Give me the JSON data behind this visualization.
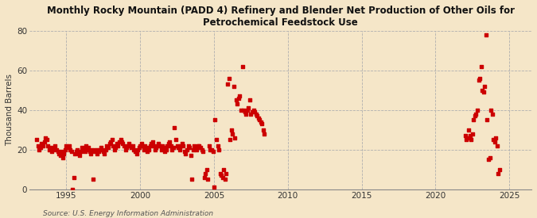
{
  "title": "Monthly Rocky Mountain (PADD 4) Refinery and Blender Net Production of Other Oils for\nPetrochemical Feedstock Use",
  "ylabel": "Thousand Barrels",
  "source": "Source: U.S. Energy Information Administration",
  "background_color": "#f5e6c8",
  "plot_bg_color": "#f5e6c8",
  "dot_color": "#cc0000",
  "xlim": [
    1992.5,
    2026.5
  ],
  "ylim": [
    0,
    80
  ],
  "yticks": [
    0,
    20,
    40,
    60,
    80
  ],
  "xticks": [
    1995,
    2000,
    2005,
    2010,
    2015,
    2020,
    2025
  ],
  "data": [
    [
      1993.0,
      25
    ],
    [
      1993.08,
      22
    ],
    [
      1993.17,
      20
    ],
    [
      1993.25,
      21
    ],
    [
      1993.33,
      23
    ],
    [
      1993.42,
      22
    ],
    [
      1993.5,
      24
    ],
    [
      1993.58,
      26
    ],
    [
      1993.67,
      25
    ],
    [
      1993.75,
      22
    ],
    [
      1993.83,
      20
    ],
    [
      1993.92,
      21
    ],
    [
      1994.0,
      19
    ],
    [
      1994.08,
      20
    ],
    [
      1994.17,
      21
    ],
    [
      1994.25,
      22
    ],
    [
      1994.33,
      20
    ],
    [
      1994.42,
      19
    ],
    [
      1994.5,
      18
    ],
    [
      1994.58,
      17
    ],
    [
      1994.67,
      19
    ],
    [
      1994.75,
      16
    ],
    [
      1994.83,
      18
    ],
    [
      1994.92,
      20
    ],
    [
      1995.0,
      22
    ],
    [
      1995.08,
      21
    ],
    [
      1995.17,
      22
    ],
    [
      1995.25,
      20
    ],
    [
      1995.33,
      19
    ],
    [
      1995.42,
      0
    ],
    [
      1995.5,
      6
    ],
    [
      1995.58,
      18
    ],
    [
      1995.67,
      19
    ],
    [
      1995.75,
      20
    ],
    [
      1995.83,
      18
    ],
    [
      1995.92,
      17
    ],
    [
      1996.0,
      19
    ],
    [
      1996.08,
      21
    ],
    [
      1996.17,
      20
    ],
    [
      1996.25,
      19
    ],
    [
      1996.33,
      22
    ],
    [
      1996.42,
      20
    ],
    [
      1996.5,
      21
    ],
    [
      1996.58,
      19
    ],
    [
      1996.67,
      18
    ],
    [
      1996.75,
      20
    ],
    [
      1996.83,
      5
    ],
    [
      1996.92,
      19
    ],
    [
      1997.0,
      20
    ],
    [
      1997.08,
      18
    ],
    [
      1997.17,
      19
    ],
    [
      1997.25,
      20
    ],
    [
      1997.33,
      21
    ],
    [
      1997.42,
      20
    ],
    [
      1997.5,
      19
    ],
    [
      1997.58,
      18
    ],
    [
      1997.67,
      20
    ],
    [
      1997.75,
      22
    ],
    [
      1997.83,
      21
    ],
    [
      1997.92,
      23
    ],
    [
      1998.0,
      24
    ],
    [
      1998.08,
      25
    ],
    [
      1998.17,
      22
    ],
    [
      1998.25,
      20
    ],
    [
      1998.33,
      21
    ],
    [
      1998.42,
      23
    ],
    [
      1998.5,
      22
    ],
    [
      1998.58,
      24
    ],
    [
      1998.67,
      25
    ],
    [
      1998.75,
      24
    ],
    [
      1998.83,
      23
    ],
    [
      1998.92,
      22
    ],
    [
      1999.0,
      20
    ],
    [
      1999.08,
      21
    ],
    [
      1999.17,
      22
    ],
    [
      1999.25,
      23
    ],
    [
      1999.33,
      22
    ],
    [
      1999.42,
      21
    ],
    [
      1999.5,
      22
    ],
    [
      1999.58,
      20
    ],
    [
      1999.67,
      19
    ],
    [
      1999.75,
      18
    ],
    [
      1999.83,
      20
    ],
    [
      1999.92,
      21
    ],
    [
      2000.0,
      22
    ],
    [
      2000.08,
      23
    ],
    [
      2000.17,
      22
    ],
    [
      2000.25,
      20
    ],
    [
      2000.33,
      22
    ],
    [
      2000.42,
      21
    ],
    [
      2000.5,
      19
    ],
    [
      2000.58,
      20
    ],
    [
      2000.67,
      22
    ],
    [
      2000.75,
      23
    ],
    [
      2000.83,
      24
    ],
    [
      2000.92,
      22
    ],
    [
      2001.0,
      20
    ],
    [
      2001.08,
      21
    ],
    [
      2001.17,
      22
    ],
    [
      2001.25,
      23
    ],
    [
      2001.33,
      22
    ],
    [
      2001.42,
      20
    ],
    [
      2001.5,
      22
    ],
    [
      2001.58,
      21
    ],
    [
      2001.67,
      19
    ],
    [
      2001.75,
      20
    ],
    [
      2001.83,
      22
    ],
    [
      2001.92,
      23
    ],
    [
      2002.0,
      24
    ],
    [
      2002.08,
      22
    ],
    [
      2002.17,
      20
    ],
    [
      2002.25,
      21
    ],
    [
      2002.33,
      31
    ],
    [
      2002.42,
      25
    ],
    [
      2002.5,
      22
    ],
    [
      2002.58,
      21
    ],
    [
      2002.67,
      20
    ],
    [
      2002.75,
      22
    ],
    [
      2002.83,
      23
    ],
    [
      2002.92,
      22
    ],
    [
      2003.0,
      19
    ],
    [
      2003.08,
      18
    ],
    [
      2003.17,
      20
    ],
    [
      2003.25,
      22
    ],
    [
      2003.33,
      21
    ],
    [
      2003.42,
      17
    ],
    [
      2003.5,
      5
    ],
    [
      2003.58,
      20
    ],
    [
      2003.67,
      22
    ],
    [
      2003.75,
      21
    ],
    [
      2003.83,
      20
    ],
    [
      2003.92,
      22
    ],
    [
      2004.0,
      22
    ],
    [
      2004.08,
      21
    ],
    [
      2004.17,
      20
    ],
    [
      2004.25,
      19
    ],
    [
      2004.33,
      6
    ],
    [
      2004.42,
      8
    ],
    [
      2004.5,
      10
    ],
    [
      2004.58,
      5
    ],
    [
      2004.67,
      22
    ],
    [
      2004.75,
      20
    ],
    [
      2004.83,
      20
    ],
    [
      2004.92,
      19
    ],
    [
      2005.0,
      1
    ],
    [
      2005.08,
      35
    ],
    [
      2005.17,
      25
    ],
    [
      2005.25,
      22
    ],
    [
      2005.33,
      20
    ],
    [
      2005.42,
      8
    ],
    [
      2005.5,
      7
    ],
    [
      2005.58,
      6
    ],
    [
      2005.67,
      10
    ],
    [
      2005.75,
      5
    ],
    [
      2005.83,
      8
    ],
    [
      2005.92,
      53
    ],
    [
      2006.0,
      56
    ],
    [
      2006.08,
      25
    ],
    [
      2006.17,
      30
    ],
    [
      2006.25,
      28
    ],
    [
      2006.33,
      52
    ],
    [
      2006.42,
      26
    ],
    [
      2006.5,
      45
    ],
    [
      2006.58,
      43
    ],
    [
      2006.67,
      46
    ],
    [
      2006.75,
      47
    ],
    [
      2006.83,
      40
    ],
    [
      2006.92,
      62
    ],
    [
      2007.0,
      40
    ],
    [
      2007.08,
      39
    ],
    [
      2007.17,
      38
    ],
    [
      2007.25,
      40
    ],
    [
      2007.33,
      41
    ],
    [
      2007.42,
      45
    ],
    [
      2007.5,
      38
    ],
    [
      2007.58,
      39
    ],
    [
      2007.67,
      40
    ],
    [
      2007.75,
      39
    ],
    [
      2007.83,
      38
    ],
    [
      2007.92,
      37
    ],
    [
      2008.0,
      36
    ],
    [
      2008.08,
      35
    ],
    [
      2008.17,
      34
    ],
    [
      2008.25,
      33
    ],
    [
      2008.33,
      30
    ],
    [
      2008.42,
      28
    ],
    [
      2022.0,
      27
    ],
    [
      2022.08,
      25
    ],
    [
      2022.17,
      26
    ],
    [
      2022.25,
      30
    ],
    [
      2022.33,
      27
    ],
    [
      2022.42,
      25
    ],
    [
      2022.5,
      28
    ],
    [
      2022.58,
      35
    ],
    [
      2022.67,
      37
    ],
    [
      2022.75,
      38
    ],
    [
      2022.83,
      40
    ],
    [
      2022.92,
      55
    ],
    [
      2023.0,
      56
    ],
    [
      2023.08,
      62
    ],
    [
      2023.17,
      50
    ],
    [
      2023.25,
      49
    ],
    [
      2023.33,
      52
    ],
    [
      2023.42,
      78
    ],
    [
      2023.5,
      35
    ],
    [
      2023.58,
      15
    ],
    [
      2023.67,
      16
    ],
    [
      2023.75,
      40
    ],
    [
      2023.83,
      38
    ],
    [
      2023.92,
      25
    ],
    [
      2024.0,
      24
    ],
    [
      2024.08,
      26
    ],
    [
      2024.17,
      22
    ],
    [
      2024.25,
      8
    ],
    [
      2024.33,
      10
    ]
  ]
}
